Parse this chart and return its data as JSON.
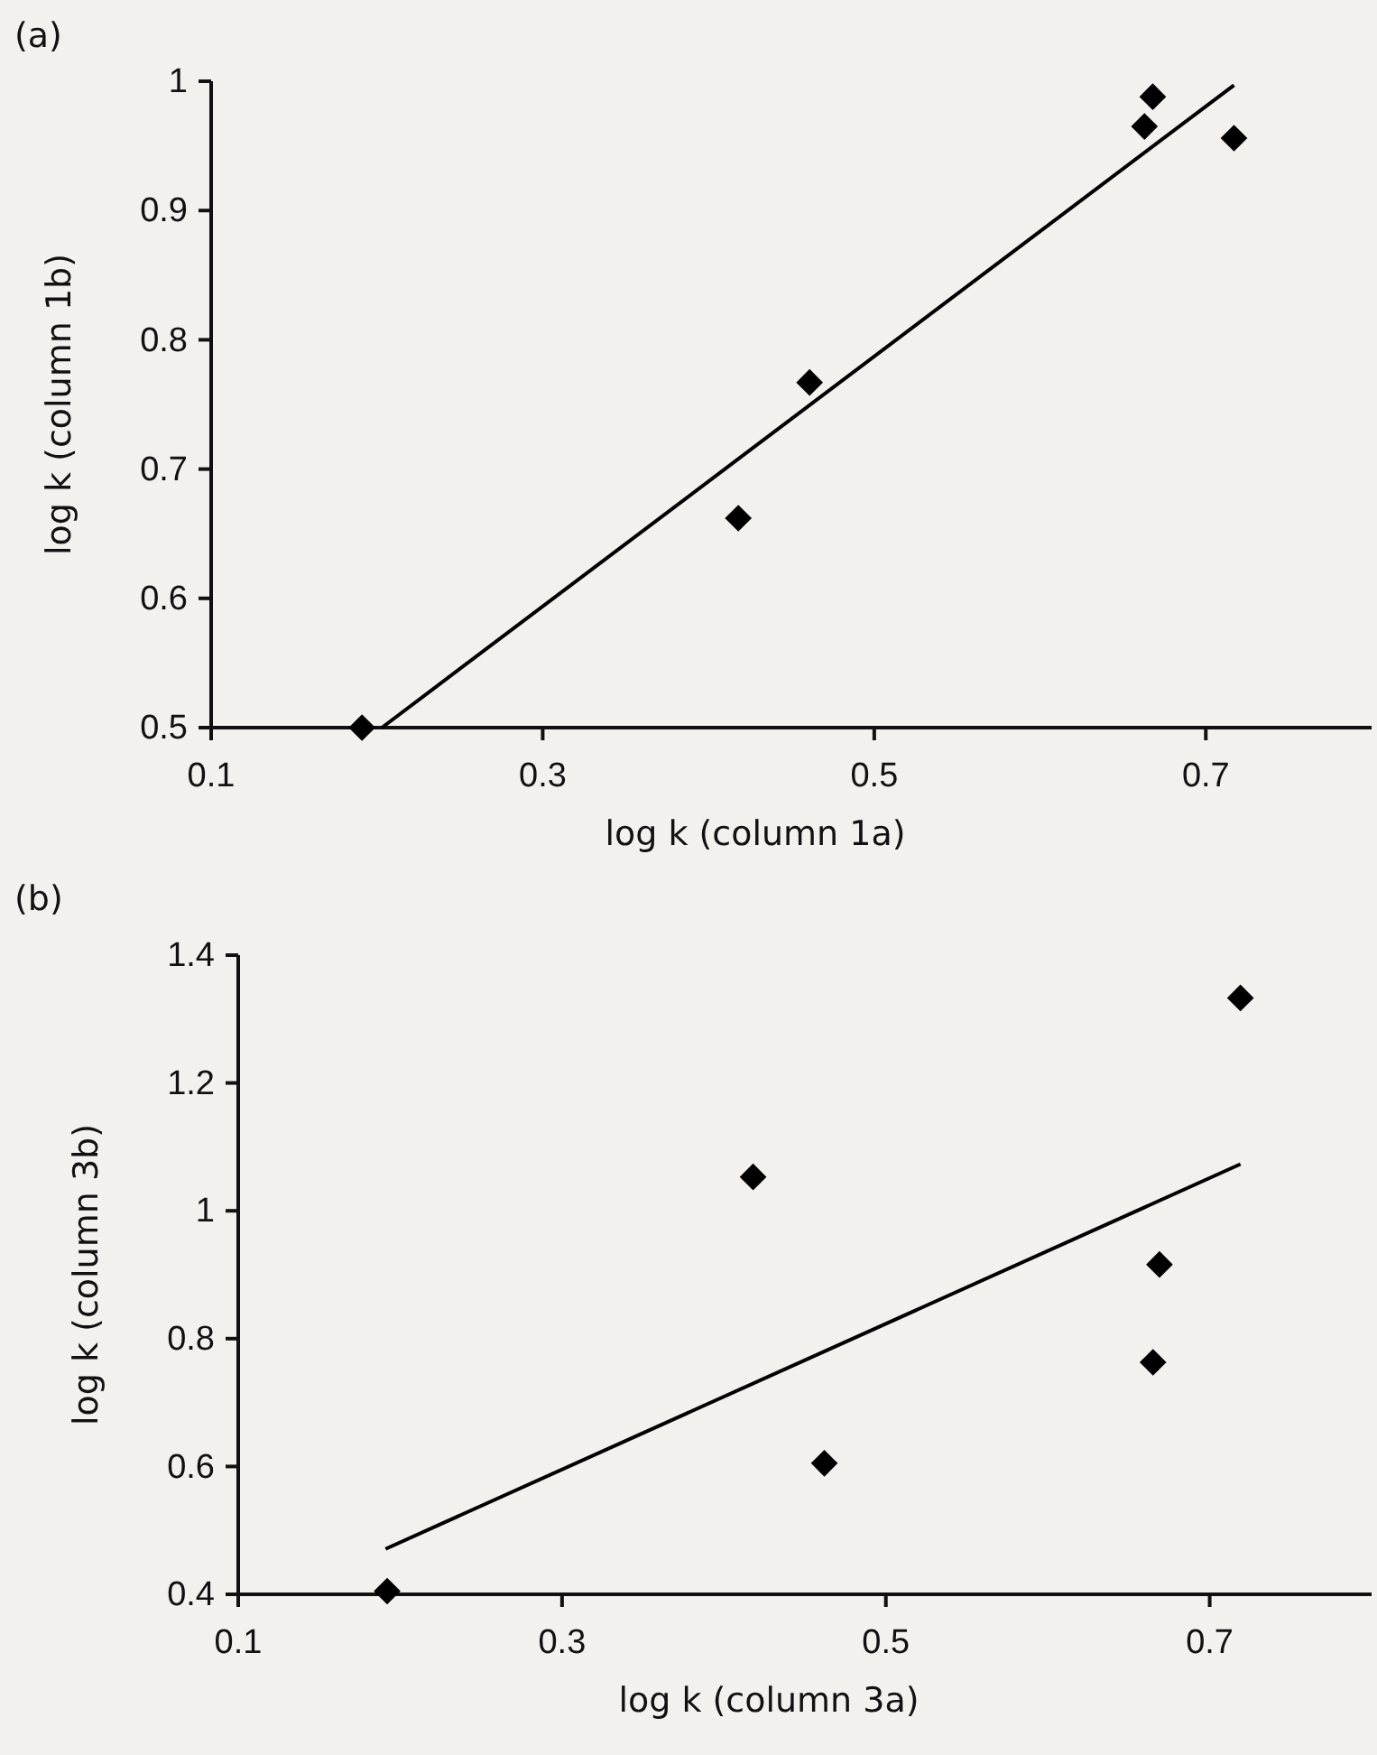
{
  "chart_data": [
    {
      "type": "scatter",
      "title": "(a)",
      "xlabel": "log k (column 1a)",
      "ylabel": "log k (column 1b)",
      "xlim": [
        0.1,
        0.8
      ],
      "xticks": [
        0.1,
        0.3,
        0.5,
        0.7
      ],
      "ylim": [
        0.5,
        1.0
      ],
      "yticks": [
        0.5,
        0.6,
        0.7,
        0.8,
        0.9,
        1
      ],
      "grid": false,
      "series": [
        {
          "marker": "diamond",
          "color": "#000000",
          "x": [
            0.191,
            0.418,
            0.461,
            0.663,
            0.668,
            0.717
          ],
          "values": [
            0.5,
            0.662,
            0.767,
            0.965,
            0.988,
            0.956
          ]
        },
        {
          "type": "line",
          "marker": "none",
          "line_style": "solid",
          "color": "#000000",
          "x": [
            0.203,
            0.717
          ],
          "values": [
            0.5,
            0.997
          ]
        }
      ]
    },
    {
      "type": "scatter",
      "title": "(b)",
      "xlabel": "log k (column 3a)",
      "ylabel": "log k (column 3b)",
      "xlim": [
        0.1,
        0.8
      ],
      "xticks": [
        0.1,
        0.3,
        0.5,
        0.7
      ],
      "ylim": [
        0.4,
        1.4
      ],
      "yticks": [
        0.4,
        0.6,
        0.8,
        1,
        1.2,
        1.4
      ],
      "grid": false,
      "series": [
        {
          "marker": "diamond",
          "color": "#000000",
          "x": [
            0.192,
            0.418,
            0.462,
            0.665,
            0.669,
            0.719
          ],
          "values": [
            0.405,
            1.053,
            0.605,
            0.763,
            0.916,
            1.333
          ]
        },
        {
          "type": "line",
          "marker": "none",
          "line_style": "solid",
          "color": "#000000",
          "x": [
            0.191,
            0.719
          ],
          "values": [
            0.471,
            1.073
          ]
        }
      ]
    }
  ]
}
